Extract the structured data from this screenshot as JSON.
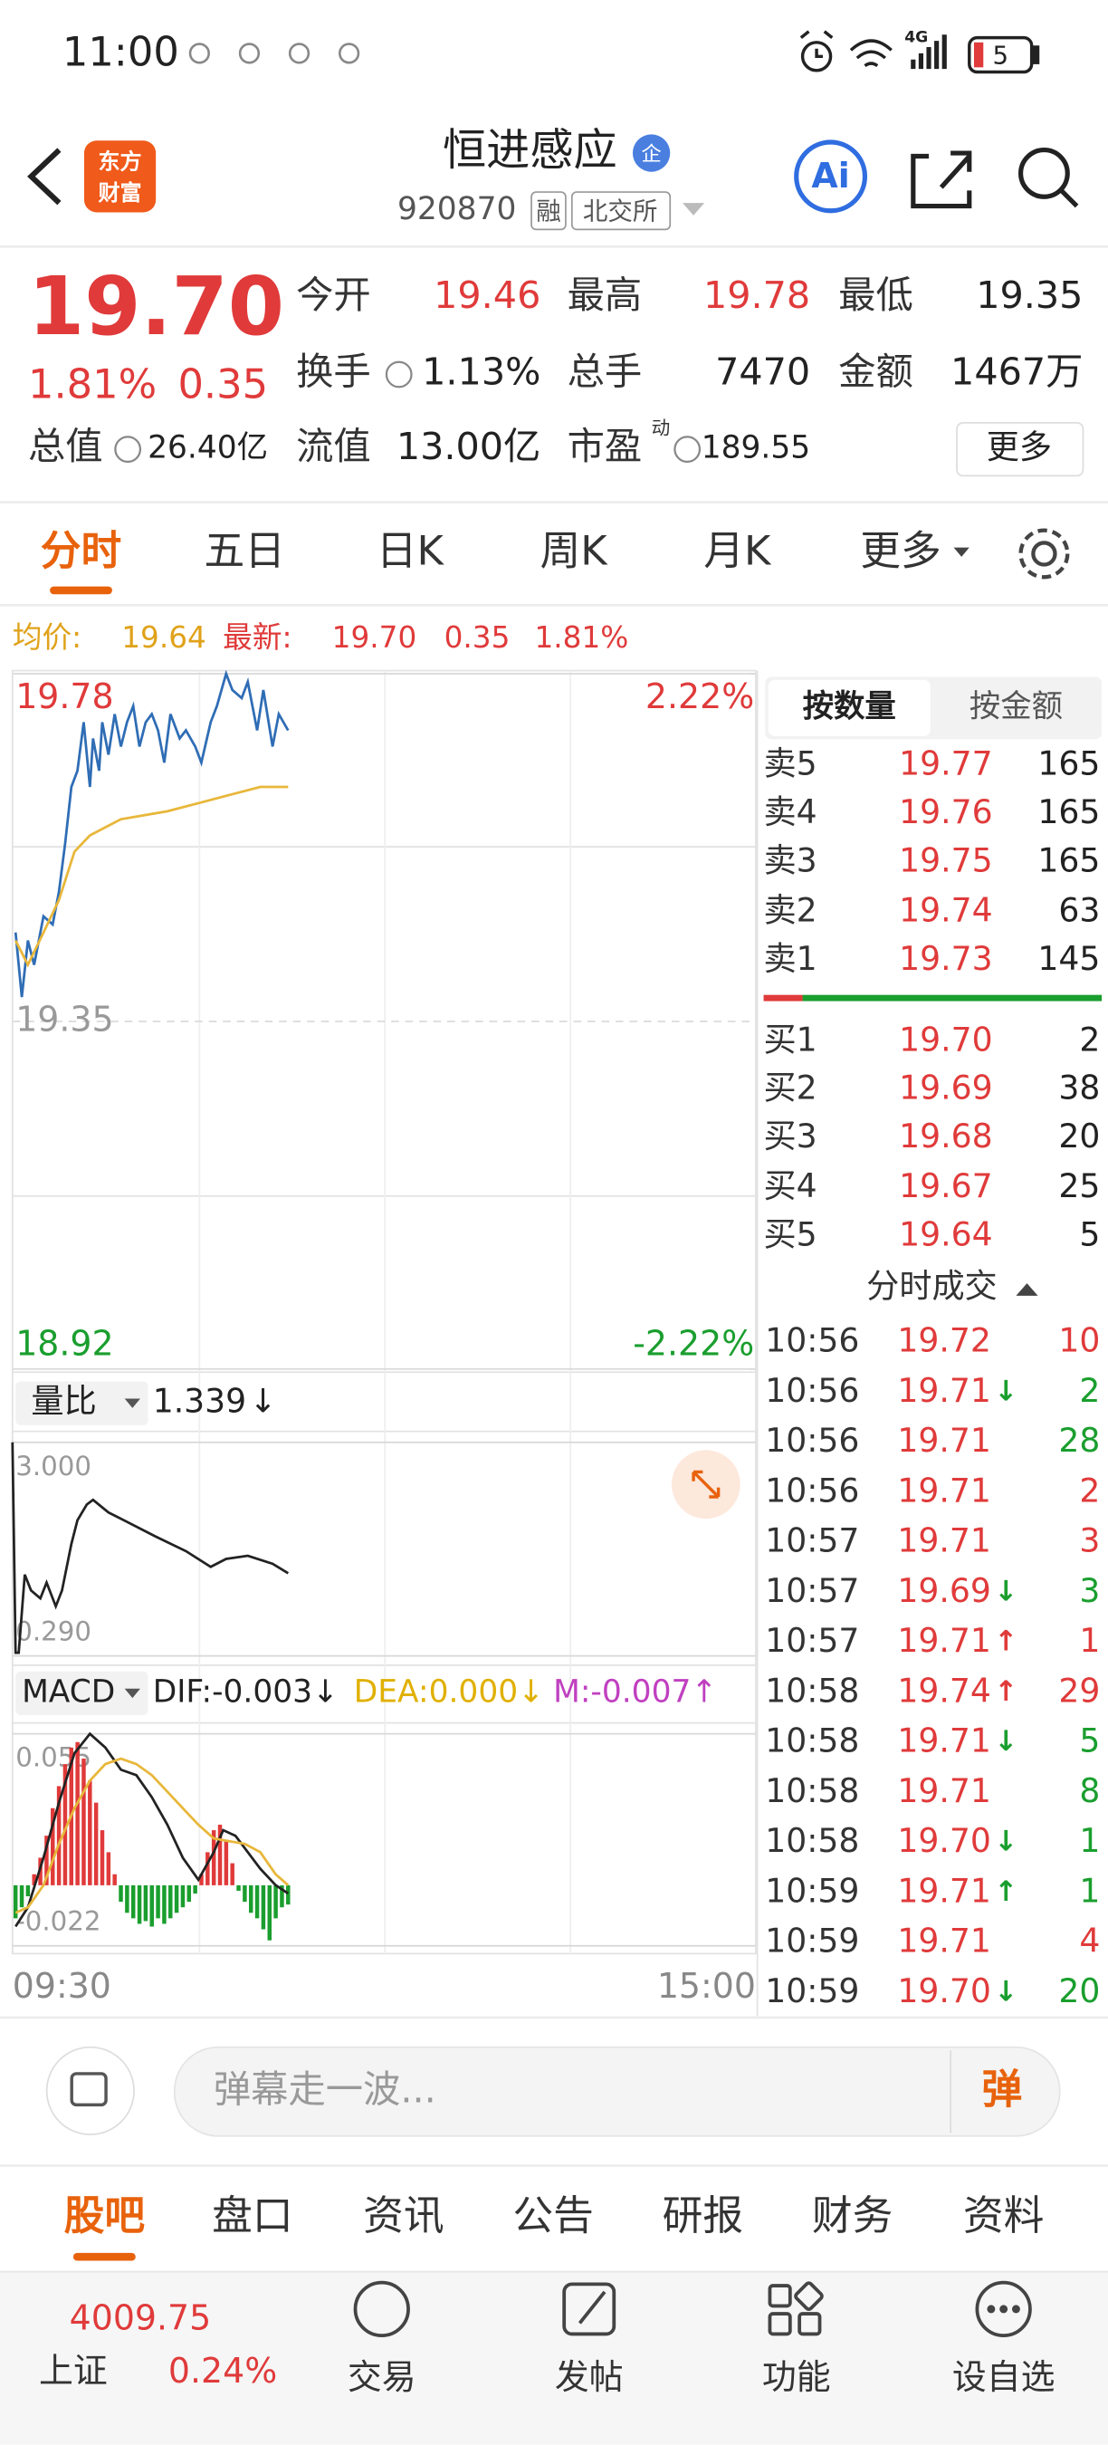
{
  "status_bar": {
    "time": "11:00",
    "network": "4G",
    "battery": "5"
  },
  "header": {
    "logo": [
      "东方",
      "财富"
    ],
    "title": "恒进感应",
    "badge": "企",
    "code": "920870",
    "tags": [
      "融",
      "北交所"
    ],
    "ai": "Ai"
  },
  "quote": {
    "price": "19.70",
    "change_pct": "1.81%",
    "change": "0.35",
    "color": "#e03a3a",
    "fields": [
      {
        "label": "今开",
        "value": "19.46",
        "color": "#e03a3a"
      },
      {
        "label": "最高",
        "value": "19.78",
        "color": "#e03a3a"
      },
      {
        "label": "最低",
        "value": "19.35",
        "color": "#222222"
      },
      {
        "label": "换手",
        "value": "1.13%",
        "color": "#222222"
      },
      {
        "label": "总手",
        "value": "7470",
        "color": "#222222"
      },
      {
        "label": "金额",
        "value": "1467万",
        "color": "#222222"
      },
      {
        "label": "总值",
        "value": "26.40亿",
        "color": "#222222"
      },
      {
        "label": "流值",
        "value": "13.00亿",
        "color": "#222222"
      },
      {
        "label": "市盈",
        "value": "189.55",
        "color": "#222222"
      }
    ],
    "pe_sup": "动",
    "more": "更多"
  },
  "tabs": {
    "items": [
      "分时",
      "五日",
      "日K",
      "周K",
      "月K",
      "更多"
    ],
    "active": 0,
    "active_color": "#e8620c"
  },
  "summary": {
    "avg_label": "均价:",
    "avg": "19.64",
    "avg_color": "#e0a21a",
    "last_label": "最新:",
    "last": "19.70",
    "change": "0.35",
    "change_pct": "1.81%",
    "color": "#e03a3a"
  },
  "chart_data": [
    {
      "type": "line",
      "xlim": [
        0,
        240
      ],
      "xticks": [
        {
          "value": 0,
          "label": "09:30"
        },
        {
          "value": 240,
          "label": "15:00"
        }
      ],
      "ylim": [
        18.92,
        19.78
      ],
      "yticks": [
        19.78,
        19.35,
        18.92
      ],
      "ytick_colors": [
        "#e03a3a",
        "#999999",
        "#1a9e2e"
      ],
      "y2lim": [
        -2.22,
        2.22
      ],
      "y2ticks": [
        {
          "value": 2.22,
          "label": "2.22%"
        },
        {
          "value": -2.22,
          "label": "-2.22%"
        }
      ],
      "y2tick_colors": [
        "#e03a3a",
        "#1a9e2e"
      ],
      "grid": true,
      "series": [
        {
          "color": "#2f6db5",
          "x": [
            1,
            3,
            5,
            7,
            10,
            13,
            15,
            17,
            19,
            21,
            23,
            25,
            26,
            28,
            29,
            31,
            33,
            35,
            37,
            39,
            41,
            43,
            45,
            47,
            49,
            51,
            54,
            56,
            59,
            61,
            64,
            66,
            69,
            71,
            74,
            76,
            79,
            81,
            84,
            86,
            89
          ],
          "values": [
            19.46,
            19.38,
            19.45,
            19.42,
            19.48,
            19.47,
            19.51,
            19.57,
            19.64,
            19.66,
            19.72,
            19.64,
            19.7,
            19.66,
            19.72,
            19.68,
            19.73,
            19.69,
            19.72,
            19.74,
            19.69,
            19.72,
            19.73,
            19.71,
            19.67,
            19.73,
            19.7,
            19.71,
            19.69,
            19.67,
            19.72,
            19.74,
            19.78,
            19.76,
            19.75,
            19.77,
            19.71,
            19.76,
            19.69,
            19.73,
            19.71
          ]
        },
        {
          "color": "#e8b73a",
          "x": [
            1,
            5,
            10,
            15,
            20,
            25,
            35,
            50,
            60,
            70,
            80,
            89
          ],
          "values": [
            19.45,
            19.42,
            19.46,
            19.5,
            19.56,
            19.58,
            19.6,
            19.61,
            19.62,
            19.63,
            19.64,
            19.64
          ]
        }
      ]
    },
    {
      "type": "line",
      "label": "量比",
      "current": "1.339",
      "current_arrow": "↓",
      "xlim": [
        0,
        240
      ],
      "ylim": [
        0.29,
        3
      ],
      "yticks": [
        {
          "value": 3,
          "label": "3.000"
        },
        {
          "value": 0.29,
          "label": "0.290"
        }
      ],
      "ytick_colors": [
        "#999999",
        "#999999"
      ],
      "series": [
        {
          "color": "#222222",
          "x": [
            0,
            1,
            2,
            4,
            6,
            9,
            11,
            14,
            16,
            19,
            21,
            24,
            26,
            31,
            36,
            46,
            56,
            64,
            69,
            76,
            84,
            89
          ],
          "values": [
            3,
            0.33,
            0.33,
            1.32,
            1.12,
            1.02,
            1.22,
            0.92,
            1.12,
            1.71,
            2.01,
            2.21,
            2.27,
            2.11,
            2.01,
            1.81,
            1.62,
            1.42,
            1.52,
            1.56,
            1.46,
            1.339
          ]
        }
      ]
    },
    {
      "type": "macd",
      "label": "MACD",
      "indicators": [
        {
          "text": "DIF:-0.003↓",
          "color": "#222222"
        },
        {
          "text": "DEA:0.000↓",
          "color": "#e0b000"
        },
        {
          "text": "M:-0.007↑",
          "color": "#c040c0"
        }
      ],
      "xlim": [
        0,
        240
      ],
      "ylim": [
        -0.022,
        0.055
      ],
      "yticks": [
        0.055,
        -0.022
      ],
      "ytick_colors": [
        "#999999",
        "#999999"
      ],
      "up_color": "#e03a3a",
      "down_color": "#1a9e2e",
      "bars": {
        "x": [
          1,
          3,
          5,
          7,
          9,
          11,
          13,
          15,
          17,
          19,
          21,
          23,
          25,
          27,
          29,
          31,
          33,
          35,
          37,
          39,
          41,
          43,
          45,
          47,
          49,
          51,
          53,
          55,
          57,
          59,
          61,
          63,
          65,
          67,
          69,
          71,
          73,
          75,
          77,
          79,
          81,
          83,
          85,
          87,
          89
        ],
        "values": [
          -0.012,
          -0.008,
          -0.004,
          0.004,
          0.01,
          0.018,
          0.028,
          0.036,
          0.044,
          0.05,
          0.052,
          0.046,
          0.038,
          0.03,
          0.02,
          0.012,
          0.004,
          -0.006,
          -0.01,
          -0.012,
          -0.014,
          -0.013,
          -0.015,
          -0.012,
          -0.014,
          -0.012,
          -0.01,
          -0.008,
          -0.006,
          -0.003,
          0.004,
          0.012,
          0.02,
          0.022,
          0.016,
          0.008,
          -0.002,
          -0.006,
          -0.01,
          -0.012,
          -0.016,
          -0.02,
          -0.012,
          -0.008,
          -0.007
        ]
      },
      "series": [
        {
          "color": "#222222",
          "x": [
            1,
            5,
            10,
            15,
            20,
            25,
            30,
            35,
            40,
            45,
            50,
            55,
            60,
            65,
            68,
            72,
            76,
            80,
            85,
            89
          ],
          "values": [
            -0.015,
            -0.008,
            0.01,
            0.03,
            0.048,
            0.055,
            0.05,
            0.042,
            0.04,
            0.032,
            0.022,
            0.01,
            0.002,
            0.012,
            0.02,
            0.018,
            0.012,
            0.006,
            0.0,
            -0.003
          ]
        },
        {
          "color": "#e8b73a",
          "x": [
            1,
            5,
            10,
            15,
            20,
            25,
            30,
            35,
            40,
            45,
            50,
            55,
            60,
            65,
            70,
            75,
            80,
            85,
            89
          ],
          "values": [
            -0.01,
            -0.008,
            0.0,
            0.015,
            0.028,
            0.038,
            0.044,
            0.046,
            0.044,
            0.04,
            0.034,
            0.028,
            0.022,
            0.017,
            0.016,
            0.015,
            0.012,
            0.004,
            0.0
          ]
        }
      ]
    }
  ],
  "orderbook": {
    "tabs": [
      "按数量",
      "按金额"
    ],
    "price_color": "#e03a3a",
    "sells": [
      {
        "label": "卖5",
        "price": "19.77",
        "volume": "165"
      },
      {
        "label": "卖4",
        "price": "19.76",
        "volume": "165"
      },
      {
        "label": "卖3",
        "price": "19.75",
        "volume": "165"
      },
      {
        "label": "卖2",
        "price": "19.74",
        "volume": "63"
      },
      {
        "label": "卖1",
        "price": "19.73",
        "volume": "145"
      }
    ],
    "buys": [
      {
        "label": "买1",
        "price": "19.70",
        "volume": "2"
      },
      {
        "label": "买2",
        "price": "19.69",
        "volume": "38"
      },
      {
        "label": "买3",
        "price": "19.68",
        "volume": "20"
      },
      {
        "label": "买4",
        "price": "19.67",
        "volume": "25"
      },
      {
        "label": "买5",
        "price": "19.64",
        "volume": "5"
      }
    ]
  },
  "trades": {
    "title": "分时成交",
    "price_color": "#e03a3a",
    "rows": [
      {
        "time": "10:56",
        "price": "19.72",
        "volume": "10",
        "color": "#e03a3a"
      },
      {
        "time": "10:56",
        "price": "19.71",
        "arrow": "↓",
        "volume": "2",
        "color": "#1a9e2e"
      },
      {
        "time": "10:56",
        "price": "19.71",
        "volume": "28",
        "color": "#1a9e2e"
      },
      {
        "time": "10:56",
        "price": "19.71",
        "volume": "2",
        "color": "#e03a3a"
      },
      {
        "time": "10:57",
        "price": "19.71",
        "volume": "3",
        "color": "#e03a3a"
      },
      {
        "time": "10:57",
        "price": "19.69",
        "arrow": "↓",
        "volume": "3",
        "color": "#1a9e2e"
      },
      {
        "time": "10:57",
        "price": "19.71",
        "arrow": "↑",
        "volume": "1",
        "color": "#e03a3a"
      },
      {
        "time": "10:58",
        "price": "19.74",
        "arrow": "↑",
        "volume": "29",
        "color": "#e03a3a"
      },
      {
        "time": "10:58",
        "price": "19.71",
        "arrow": "↓",
        "volume": "5",
        "color": "#1a9e2e"
      },
      {
        "time": "10:58",
        "price": "19.71",
        "volume": "8",
        "color": "#1a9e2e"
      },
      {
        "time": "10:58",
        "price": "19.70",
        "arrow": "↓",
        "volume": "1",
        "color": "#1a9e2e"
      },
      {
        "time": "10:59",
        "price": "19.71",
        "arrow": "↑",
        "volume": "1",
        "color": "#1a9e2e"
      },
      {
        "time": "10:59",
        "price": "19.71",
        "volume": "4",
        "color": "#e03a3a"
      },
      {
        "time": "10:59",
        "price": "19.70",
        "arrow": "↓",
        "volume": "20",
        "color": "#1a9e2e"
      }
    ]
  },
  "comment": {
    "placeholder": "弹幕走一波...",
    "button": "弹"
  },
  "bottom_tabs": {
    "items": [
      "股吧",
      "盘口",
      "资讯",
      "公告",
      "研报",
      "财务",
      "资料"
    ],
    "active": 0
  },
  "nav": {
    "index_value": "4009.75",
    "index_name": "上证",
    "index_change": "0.24%",
    "index_color": "#e03a3a",
    "items": [
      "交易",
      "发帖",
      "功能",
      "设自选"
    ]
  }
}
